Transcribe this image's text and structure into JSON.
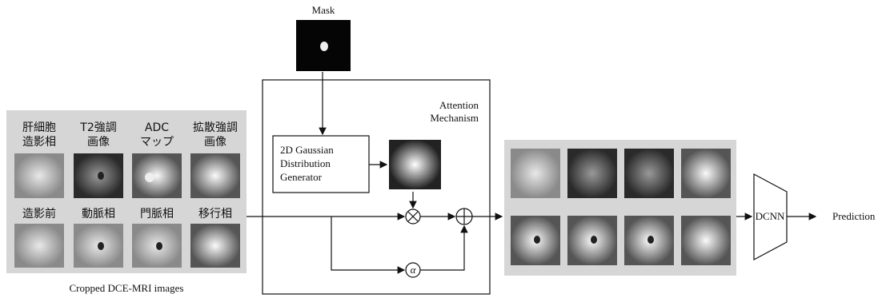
{
  "mask": {
    "label": "Mask"
  },
  "attention": {
    "title_lines": [
      "Attention",
      "Mechanism"
    ]
  },
  "generator": {
    "lines": [
      "2D Gaussian",
      "Distribution",
      "Generator"
    ]
  },
  "operators": {
    "alpha": "α"
  },
  "input_images": {
    "items": [
      {
        "label_lines": [
          "肝細胞",
          "造影相"
        ]
      },
      {
        "label_lines": [
          "T2強調",
          "画像"
        ]
      },
      {
        "label_lines": [
          "ADC",
          "マップ"
        ]
      },
      {
        "label_lines": [
          "拡散強調",
          "画像"
        ]
      },
      {
        "label_lines": [
          "造影前"
        ]
      },
      {
        "label_lines": [
          "動脈相"
        ]
      },
      {
        "label_lines": [
          "門脈相"
        ]
      },
      {
        "label_lines": [
          "移行相"
        ]
      }
    ],
    "caption": "Cropped DCE-MRI images"
  },
  "dcnn": {
    "label": "DCNN"
  },
  "output": {
    "label": "Prediction"
  }
}
